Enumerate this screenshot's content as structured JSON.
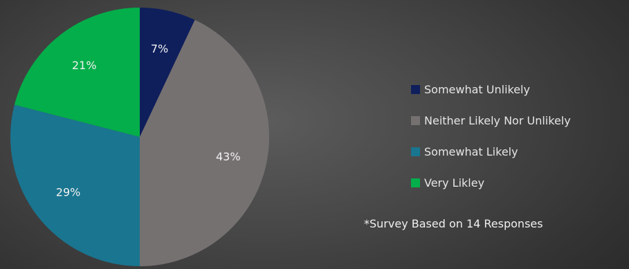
{
  "chart_data": {
    "type": "pie",
    "slices": [
      {
        "label": "Somewhat Unlikely",
        "value": 7,
        "display": "7%",
        "color": "#0f1f5c"
      },
      {
        "label": "Neither Likely Nor Unlikely",
        "value": 43,
        "display": "43%",
        "color": "#767171"
      },
      {
        "label": "Somewhat Likely",
        "value": 29,
        "display": "29%",
        "color": "#1a7590"
      },
      {
        "label": "Very Likley",
        "value": 21,
        "display": "21%",
        "color": "#04ae4a"
      }
    ],
    "start_angle_deg": 0,
    "direction": "clockwise",
    "legend_position": "right"
  },
  "footnote": "*Survey Based on 14 Responses"
}
